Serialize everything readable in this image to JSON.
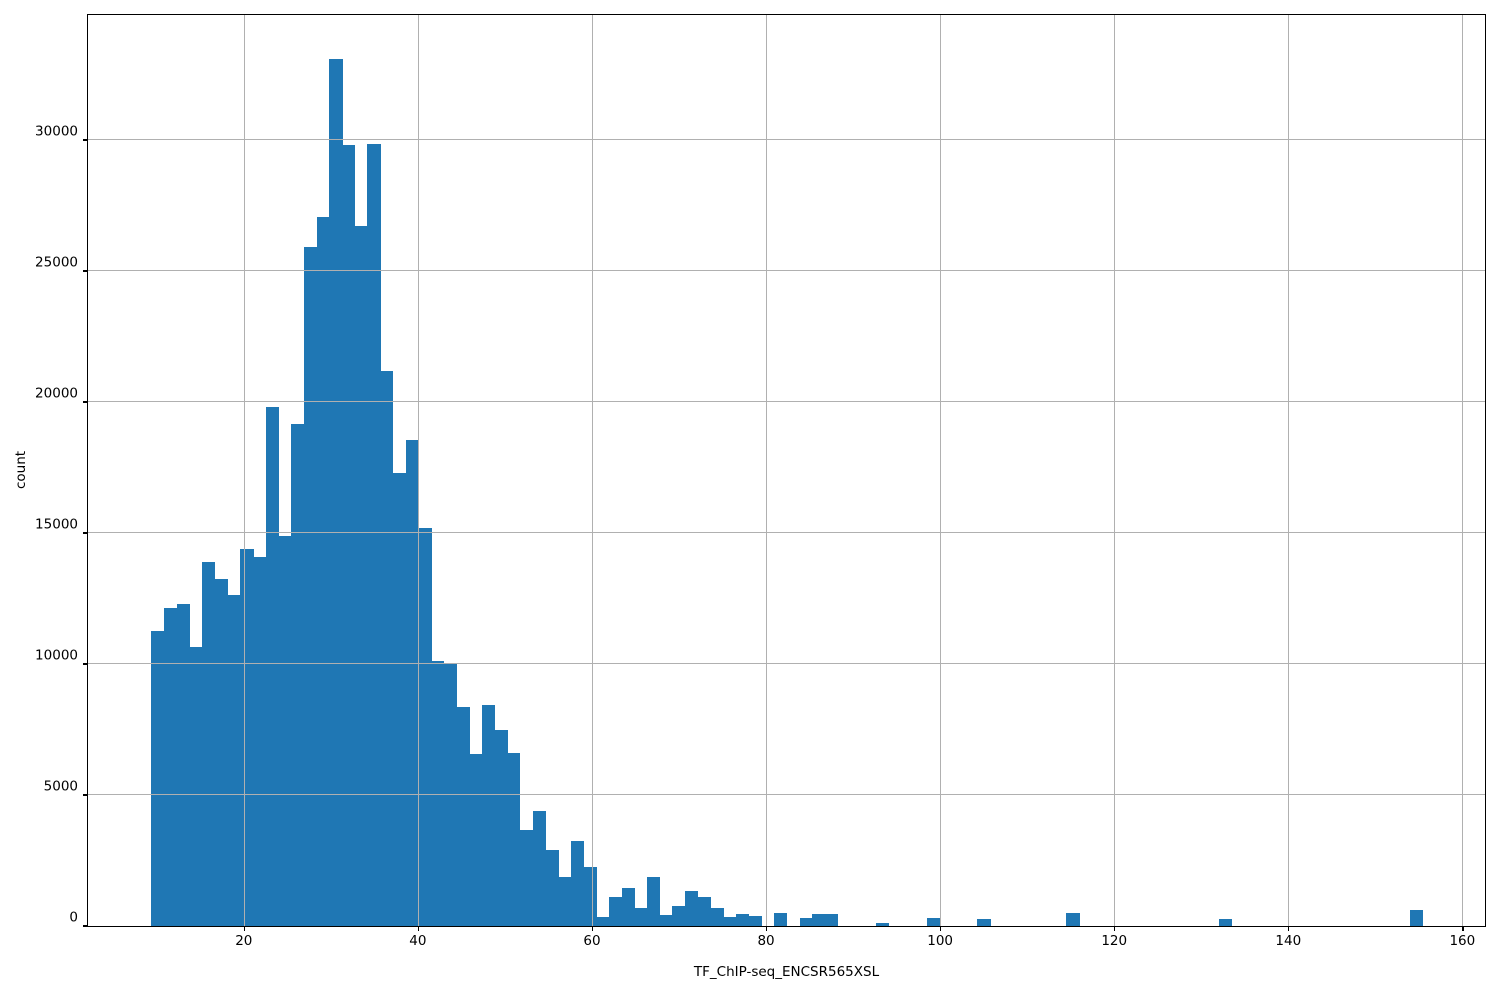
{
  "chart_data": {
    "type": "bar",
    "subtype": "histogram",
    "title": "",
    "xlabel": "TF_ChIP-seq_ENCSR565XSL",
    "ylabel": "count",
    "grid": true,
    "legend_position": "none",
    "bar_color": "#1f77b4",
    "grid_color": "#b0b0b0",
    "axis_color": "#000000",
    "background_color": "#ffffff",
    "xlim": [
      2.1,
      162.6
    ],
    "ylim": [
      0,
      34770
    ],
    "x_ticks": [
      20,
      40,
      60,
      80,
      100,
      120,
      140,
      160
    ],
    "x_tick_labels": [
      "20",
      "40",
      "60",
      "80",
      "100",
      "120",
      "140",
      "160"
    ],
    "y_ticks": [
      0,
      5000,
      10000,
      15000,
      20000,
      25000,
      30000
    ],
    "y_tick_labels": [
      "0",
      "5000",
      "10000",
      "15000",
      "20000",
      "25000",
      "30000"
    ],
    "bin_start": 9.39,
    "bin_width": 1.46,
    "counts": [
      11250,
      12150,
      12300,
      10650,
      13900,
      13250,
      12650,
      14400,
      14100,
      19800,
      14900,
      19150,
      25900,
      27050,
      33100,
      29800,
      26700,
      29850,
      21200,
      17280,
      18550,
      15200,
      10100,
      10000,
      8350,
      6550,
      8450,
      7480,
      6600,
      3660,
      4400,
      2900,
      1860,
      3260,
      2250,
      350,
      1120,
      1440,
      700,
      1860,
      420,
      760,
      1340,
      1100,
      675,
      330,
      450,
      390,
      0,
      500,
      0,
      290,
      450,
      470,
      0,
      0,
      0,
      100,
      0,
      0,
      0,
      290,
      0,
      0,
      0,
      250,
      0,
      0,
      0,
      0,
      0,
      0,
      480,
      0,
      0,
      0,
      0,
      0,
      0,
      0,
      0,
      0,
      0,
      0,
      280,
      0,
      0,
      0,
      0,
      0,
      0,
      0,
      0,
      0,
      0,
      0,
      0,
      0,
      0,
      620
    ]
  }
}
